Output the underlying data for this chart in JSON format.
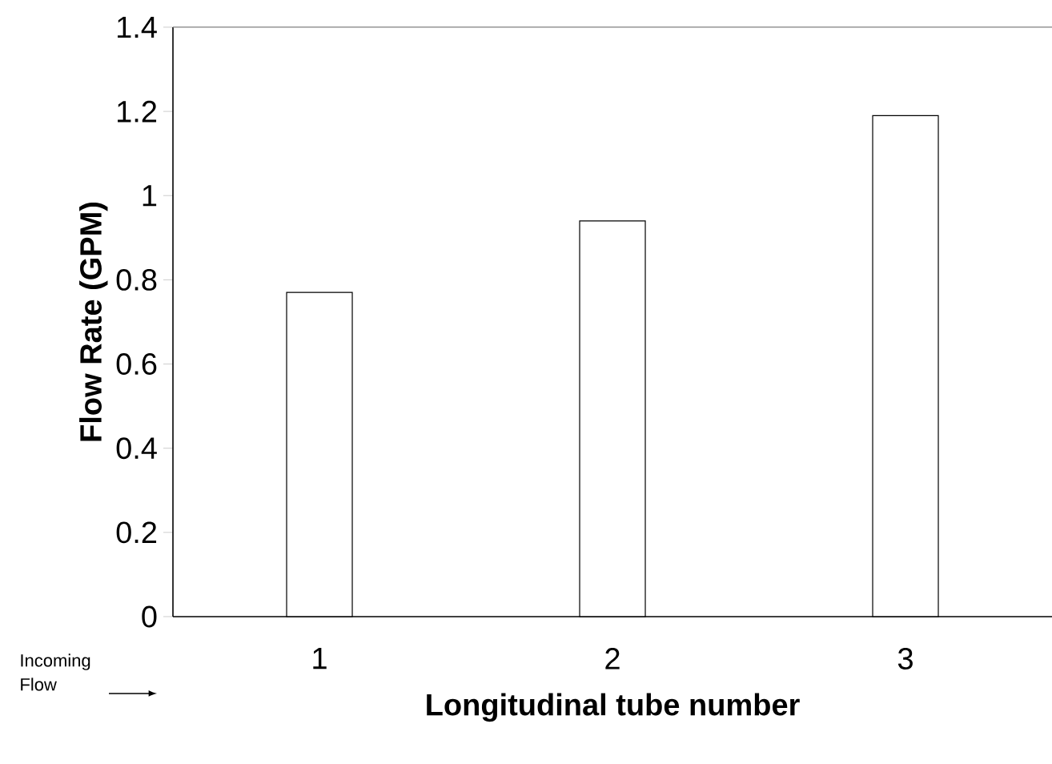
{
  "chart_data": {
    "type": "bar",
    "xlabel": "Longitudinal tube number",
    "ylabel": "Flow Rate (GPM)",
    "categories": [
      "1",
      "2",
      "3"
    ],
    "values": [
      0.77,
      0.94,
      1.19
    ],
    "color": "#ffffff",
    "ylim": [
      0,
      1.4
    ],
    "yticks": [
      0,
      0.2,
      0.4,
      0.6,
      0.8,
      1,
      1.2,
      1.4
    ],
    "annotations": [
      "Incoming Flow"
    ]
  }
}
